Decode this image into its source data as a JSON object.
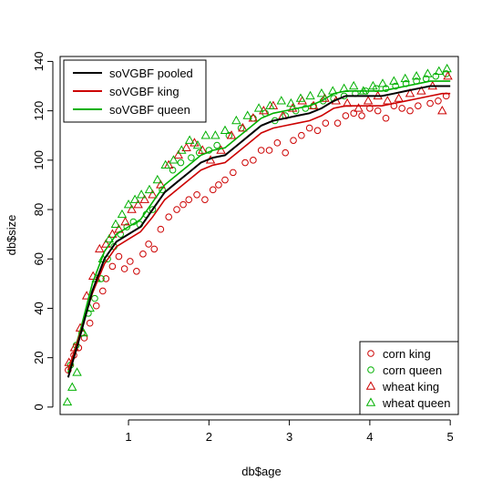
{
  "chart_data": {
    "type": "scatter",
    "title": "",
    "xlabel": "db$age",
    "ylabel": "db$size",
    "xlim": [
      0.15,
      5.1
    ],
    "ylim": [
      -3,
      142
    ],
    "x_ticks": [
      1,
      2,
      3,
      4,
      5
    ],
    "y_ticks": [
      0,
      20,
      40,
      60,
      80,
      100,
      120,
      140
    ],
    "grid": false,
    "legends": [
      {
        "placement": "top-left",
        "entries": [
          {
            "label": "soVGBF pooled",
            "color": "#000000",
            "symbol": "line"
          },
          {
            "label": "soVGBF king",
            "color": "#cc0000",
            "symbol": "line"
          },
          {
            "label": "soVGBF queen",
            "color": "#00b000",
            "symbol": "line"
          }
        ]
      },
      {
        "placement": "bottom-right",
        "entries": [
          {
            "label": "corn king",
            "color": "#cc0000",
            "symbol": "circle"
          },
          {
            "label": "corn queen",
            "color": "#00b000",
            "symbol": "circle"
          },
          {
            "label": "wheat king",
            "color": "#cc0000",
            "symbol": "triangle"
          },
          {
            "label": "wheat queen",
            "color": "#00b000",
            "symbol": "triangle"
          }
        ]
      }
    ],
    "curves": [
      {
        "name": "soVGBF pooled",
        "color": "#000000",
        "x": [
          0.25,
          0.4,
          0.55,
          0.7,
          0.85,
          1.0,
          1.15,
          1.3,
          1.45,
          1.6,
          1.75,
          1.9,
          2.05,
          2.2,
          2.35,
          2.5,
          2.65,
          2.8,
          2.95,
          3.1,
          3.25,
          3.4,
          3.55,
          3.7,
          3.85,
          4.0,
          4.15,
          4.3,
          4.45,
          4.6,
          4.75,
          4.9,
          5.0
        ],
        "y": [
          12,
          29,
          47,
          60,
          67,
          70,
          73,
          80,
          87,
          91,
          95,
          99,
          101,
          102,
          106,
          110,
          114,
          116,
          117,
          118,
          119,
          121,
          124,
          126,
          126,
          126,
          126,
          127,
          128,
          129,
          130,
          130,
          130
        ]
      },
      {
        "name": "soVGBF king",
        "color": "#cc0000",
        "x": [
          0.25,
          0.4,
          0.55,
          0.7,
          0.85,
          1.0,
          1.15,
          1.3,
          1.45,
          1.6,
          1.75,
          1.9,
          2.05,
          2.2,
          2.35,
          2.5,
          2.65,
          2.8,
          2.95,
          3.1,
          3.25,
          3.4,
          3.55,
          3.7,
          3.85,
          4.0,
          4.15,
          4.3,
          4.45,
          4.6,
          4.75,
          4.9,
          5.0
        ],
        "y": [
          15,
          30,
          46,
          58,
          65,
          68,
          71,
          77,
          84,
          88,
          92,
          96,
          98,
          99,
          103,
          107,
          111,
          113,
          114,
          115,
          116,
          118,
          121,
          122,
          122,
          122,
          122,
          123,
          124,
          125,
          126,
          127,
          127
        ]
      },
      {
        "name": "soVGBF queen",
        "color": "#00b000",
        "x": [
          0.25,
          0.4,
          0.55,
          0.7,
          0.85,
          1.0,
          1.15,
          1.3,
          1.45,
          1.6,
          1.75,
          1.9,
          2.05,
          2.2,
          2.35,
          2.5,
          2.65,
          2.8,
          2.95,
          3.1,
          3.25,
          3.4,
          3.55,
          3.7,
          3.85,
          4.0,
          4.15,
          4.3,
          4.45,
          4.6,
          4.75,
          4.9,
          5.0
        ],
        "y": [
          14,
          31,
          50,
          63,
          70,
          73,
          76,
          83,
          90,
          94,
          98,
          102,
          104,
          105,
          109,
          113,
          117,
          119,
          120,
          121,
          122,
          124,
          127,
          128,
          128,
          128,
          128,
          129,
          130,
          131,
          132,
          132,
          132
        ]
      }
    ],
    "series": [
      {
        "name": "corn king",
        "color": "#cc0000",
        "marker": "circle",
        "x": [
          0.25,
          0.32,
          0.38,
          0.45,
          0.52,
          0.6,
          0.68,
          0.72,
          0.8,
          0.88,
          0.95,
          1.02,
          1.1,
          1.18,
          1.25,
          1.32,
          1.4,
          1.5,
          1.6,
          1.68,
          1.75,
          1.85,
          1.95,
          2.05,
          2.12,
          2.2,
          2.3,
          2.45,
          2.55,
          2.65,
          2.75,
          2.85,
          2.95,
          3.05,
          3.15,
          3.25,
          3.35,
          3.45,
          3.6,
          3.7,
          3.8,
          3.9,
          4.0,
          4.1,
          4.2,
          4.3,
          4.4,
          4.5,
          4.6,
          4.75,
          4.85,
          4.95
        ],
        "y": [
          15,
          21,
          24,
          28,
          34,
          41,
          47,
          52,
          57,
          61,
          56,
          59,
          55,
          62,
          66,
          64,
          72,
          77,
          80,
          82,
          84,
          86,
          84,
          88,
          90,
          92,
          95,
          99,
          100,
          104,
          104,
          107,
          103,
          108,
          110,
          113,
          112,
          115,
          115,
          118,
          119,
          118,
          121,
          120,
          117,
          122,
          121,
          120,
          122,
          123,
          124,
          126
        ]
      },
      {
        "name": "corn queen",
        "color": "#00b000",
        "marker": "circle",
        "x": [
          0.28,
          0.35,
          0.42,
          0.5,
          0.58,
          0.66,
          0.74,
          0.82,
          0.9,
          0.98,
          1.06,
          1.14,
          1.22,
          1.3,
          1.42,
          1.55,
          1.65,
          1.78,
          1.88,
          2.0,
          2.1,
          2.25,
          2.4,
          2.55,
          2.7,
          2.82,
          2.95,
          3.08,
          3.2,
          3.3,
          3.42,
          3.55,
          3.68,
          3.82,
          3.95,
          4.08,
          4.2,
          4.32,
          4.45,
          4.58,
          4.7,
          4.82,
          4.95
        ],
        "y": [
          17,
          25,
          30,
          38,
          44,
          52,
          60,
          65,
          70,
          73,
          75,
          74,
          78,
          80,
          88,
          96,
          99,
          101,
          103,
          104,
          106,
          110,
          113,
          117,
          119,
          116,
          118,
          120,
          121,
          122,
          124,
          125,
          126,
          127,
          128,
          129,
          129,
          130,
          131,
          132,
          133,
          134,
          135
        ]
      },
      {
        "name": "wheat king",
        "color": "#cc0000",
        "marker": "triangle",
        "x": [
          0.26,
          0.33,
          0.4,
          0.48,
          0.56,
          0.64,
          0.72,
          0.8,
          0.88,
          0.96,
          1.04,
          1.12,
          1.2,
          1.3,
          1.4,
          1.5,
          1.62,
          1.72,
          1.82,
          1.92,
          2.02,
          2.15,
          2.28,
          2.42,
          2.55,
          2.68,
          2.8,
          2.92,
          3.04,
          3.16,
          3.3,
          3.44,
          3.58,
          3.72,
          3.86,
          3.98,
          4.1,
          4.22,
          4.36,
          4.5,
          4.64,
          4.78,
          4.9,
          4.97
        ],
        "y": [
          18,
          24,
          32,
          45,
          53,
          64,
          66,
          70,
          72,
          75,
          80,
          82,
          84,
          86,
          90,
          98,
          102,
          105,
          107,
          104,
          100,
          104,
          110,
          113,
          117,
          120,
          122,
          118,
          121,
          124,
          122,
          125,
          124,
          123,
          121,
          124,
          126,
          124,
          125,
          127,
          128,
          130,
          120,
          134
        ]
      },
      {
        "name": "wheat queen",
        "color": "#00b000",
        "marker": "triangle",
        "x": [
          0.24,
          0.3,
          0.36,
          0.44,
          0.52,
          0.6,
          0.68,
          0.76,
          0.84,
          0.92,
          1.0,
          1.08,
          1.16,
          1.26,
          1.36,
          1.46,
          1.56,
          1.66,
          1.76,
          1.86,
          1.96,
          2.08,
          2.2,
          2.34,
          2.48,
          2.62,
          2.76,
          2.9,
          3.02,
          3.14,
          3.26,
          3.4,
          3.54,
          3.68,
          3.8,
          3.92,
          4.04,
          4.16,
          4.3,
          4.44,
          4.58,
          4.72,
          4.86,
          4.96
        ],
        "y": [
          2,
          8,
          14,
          30,
          40,
          52,
          60,
          68,
          74,
          78,
          82,
          84,
          86,
          88,
          92,
          98,
          100,
          104,
          108,
          106,
          110,
          110,
          112,
          116,
          118,
          121,
          122,
          124,
          123,
          125,
          126,
          127,
          128,
          129,
          130,
          128,
          130,
          131,
          132,
          133,
          134,
          135,
          136,
          137
        ]
      }
    ]
  }
}
